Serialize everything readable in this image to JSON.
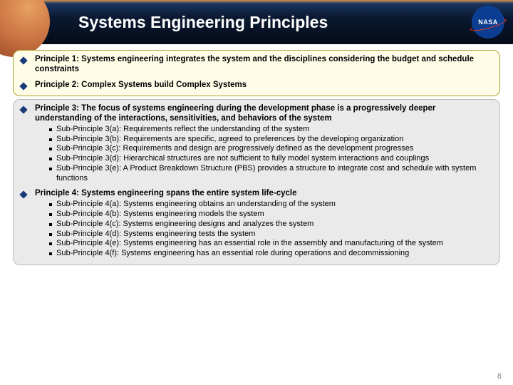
{
  "header": {
    "title": "Systems Engineering Principles",
    "logo_text": "NASA"
  },
  "principles": {
    "p1": "Principle 1: Systems engineering integrates the system and the disciplines considering the budget and schedule constraints",
    "p2": "Principle 2: Complex Systems build Complex Systems",
    "p3": "Principle 3: The focus of systems engineering during the development phase is a progressively deeper understanding of the interactions, sensitivities, and behaviors of the system",
    "p3_subs": {
      "a": "Sub-Principle 3(a): Requirements reflect the understanding of the system",
      "b": "Sub-Principle 3(b): Requirements are specific, agreed to preferences by the developing organization",
      "c": "Sub-Principle 3(c): Requirements and design are progressively defined as the development progresses",
      "d": "Sub-Principle 3(d): Hierarchical structures are not sufficient to fully model system interactions and couplings",
      "e": "Sub-Principle 3(e): A Product Breakdown Structure (PBS) provides a structure to integrate cost and schedule with system functions"
    },
    "p4": "Principle 4: Systems engineering spans the entire system life-cycle",
    "p4_subs": {
      "a": "Sub-Principle 4(a): Systems engineering obtains an understanding of the system",
      "b": "Sub-Principle 4(b): Systems engineering models the system",
      "c": "Sub-Principle 4(c): Systems engineering designs and analyzes the system",
      "d": "Sub-Principle 4(d): Systems engineering tests the system",
      "e": "Sub-Principle 4(e): Systems engineering has an essential role in the assembly and manufacturing of the system",
      "f": "Sub-Principle 4(f):  Systems engineering has an essential role during operations and decommissioning"
    }
  },
  "page_number": "8"
}
